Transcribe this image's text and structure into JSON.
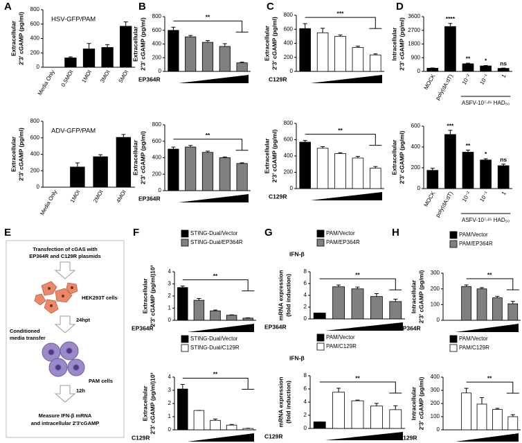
{
  "chart_data": [
    {
      "type": "bar",
      "panel": "A",
      "title": "HSV-GFP/PAM",
      "ylabel": [
        "Extracellular",
        "2'3' cGAMP (pg/ml)"
      ],
      "categories": [
        "Media Only",
        "0.5MOI",
        "1MOI",
        "3MOI",
        "5MOI"
      ],
      "values": [
        0,
        130,
        255,
        275,
        570
      ],
      "errors": [
        0,
        15,
        75,
        40,
        60
      ],
      "color": "#000000",
      "ylim": [
        0,
        800
      ],
      "yticks": [
        0,
        200,
        400,
        600,
        800
      ]
    },
    {
      "type": "bar",
      "title": "ADV-GFP/PAM",
      "ylabel": [
        "Extracellular",
        "2'3' cGAMP (pg/ml)"
      ],
      "categories": [
        "Media Only",
        "1MOI",
        "2MOI",
        "4MOI"
      ],
      "values": [
        0,
        245,
        370,
        605
      ],
      "errors": [
        0,
        50,
        25,
        35
      ],
      "color": "#000000",
      "ylim": [
        0,
        800
      ],
      "yticks": [
        0,
        200,
        400,
        600,
        800
      ]
    },
    {
      "type": "bar",
      "panel": "B",
      "ylabel": [
        "Extracellular",
        "2'3' cGAMP (pg/ml)"
      ],
      "xlabel": "EP364R",
      "categories": [
        null,
        null,
        null,
        null,
        null
      ],
      "values": [
        600,
        505,
        425,
        365,
        125
      ],
      "errors": [
        45,
        20,
        25,
        40,
        10
      ],
      "colors": [
        "#000000",
        "#808080",
        "#808080",
        "#808080",
        "#808080"
      ],
      "ylim": [
        0,
        800
      ],
      "yticks": [
        0,
        200,
        400,
        600,
        800
      ],
      "annotation": "**"
    },
    {
      "type": "bar",
      "ylabel": [
        "Extracellular",
        "2'3' cGAMP (pg/ml)"
      ],
      "xlabel": "EP364R",
      "categories": [
        null,
        null,
        null,
        null,
        null
      ],
      "values": [
        505,
        530,
        465,
        400,
        330
      ],
      "errors": [
        25,
        20,
        15,
        10,
        8
      ],
      "colors": [
        "#000000",
        "#808080",
        "#808080",
        "#808080",
        "#808080"
      ],
      "ylim": [
        0,
        800
      ],
      "yticks": [
        0,
        200,
        400,
        600,
        800
      ],
      "annotation": "**"
    },
    {
      "type": "bar",
      "panel": "C",
      "ylabel": [
        "Extracellular",
        "2'3' cGAMP (pg/ml)"
      ],
      "xlabel": "C129R",
      "categories": [
        null,
        null,
        null,
        null,
        null
      ],
      "values": [
        610,
        550,
        500,
        340,
        235
      ],
      "errors": [
        70,
        65,
        20,
        20,
        15
      ],
      "colors": [
        "#000000",
        "#ffffff",
        "#ffffff",
        "#ffffff",
        "#ffffff"
      ],
      "ylim": [
        0,
        800
      ],
      "yticks": [
        0,
        200,
        400,
        600,
        800
      ],
      "annotation": "***"
    },
    {
      "type": "bar",
      "ylabel": [
        "Extracellular",
        "2'3' cGAMP (pg/ml)"
      ],
      "xlabel": "C129R",
      "categories": [
        null,
        null,
        null,
        null,
        null
      ],
      "values": [
        570,
        495,
        430,
        375,
        250
      ],
      "errors": [
        20,
        20,
        10,
        20,
        20
      ],
      "colors": [
        "#000000",
        "#ffffff",
        "#ffffff",
        "#ffffff",
        "#ffffff"
      ],
      "ylim": [
        0,
        800
      ],
      "yticks": [
        0,
        200,
        400,
        600,
        800
      ],
      "annotation": "**"
    },
    {
      "type": "bar",
      "panel": "D",
      "ylabel": [
        "Intracellular",
        "2'3' cGAMP (pg/ml)"
      ],
      "categories": [
        "MOCK",
        "poly(dA:dT)",
        "10⁻²",
        "10⁻¹",
        "1"
      ],
      "values": [
        210,
        2950,
        500,
        360,
        200
      ],
      "errors": [
        20,
        200,
        40,
        30,
        20
      ],
      "sig_labels": [
        null,
        "****",
        "**",
        "*",
        "ns"
      ],
      "xnote": "ASFV-10⁷·²⁵ HAD₅₀",
      "color": "#000000",
      "ylim": [
        0,
        3600
      ],
      "yticks": [
        0,
        900,
        1800,
        2700,
        3600
      ]
    },
    {
      "type": "bar",
      "ylabel": [
        "Extracellular",
        "2'3' cGAMP (pg/ml)"
      ],
      "categories": [
        "MOCK",
        "poly(dA:dT)",
        "10⁻²",
        "10⁻¹",
        "1"
      ],
      "values": [
        175,
        520,
        350,
        275,
        220
      ],
      "errors": [
        20,
        40,
        20,
        12,
        15
      ],
      "sig_labels": [
        null,
        "***",
        "**",
        "*",
        "ns"
      ],
      "xnote": "ASFV-10⁷·²⁵ HAD₅₀",
      "color": "#000000",
      "ylim": [
        0,
        600
      ],
      "yticks": [
        0,
        200,
        400,
        600
      ]
    },
    {
      "type": "bar",
      "panel": "F",
      "ylabel": [
        "Extracellular",
        "2'3' cGAMP (pg/ml)10³"
      ],
      "xlabel": "EP364R",
      "categories": [
        null,
        null,
        null,
        null,
        null
      ],
      "series": [
        {
          "name": "STING-Dual/Vector",
          "color": "#000000",
          "values": [
            2.7,
            null,
            null,
            null,
            null
          ],
          "errors": [
            0.12,
            null,
            null,
            null,
            null
          ]
        },
        {
          "name": "STING-Dual/EP364R",
          "color": "#808080",
          "values": [
            null,
            1.65,
            0.78,
            0.42,
            0.18
          ],
          "errors": [
            null,
            0.15,
            0.07,
            0.03,
            0.03
          ]
        }
      ],
      "ylim": [
        0,
        4
      ],
      "yticks": [
        0,
        1,
        2,
        3,
        4
      ],
      "annotation": "**"
    },
    {
      "type": "bar",
      "ylabel": [
        "Extracellular",
        "2'3' cGAMP (pg/ml)10³"
      ],
      "xlabel": "C129R",
      "categories": [
        null,
        null,
        null,
        null,
        null
      ],
      "series": [
        {
          "name": "STING-Dual/Vector",
          "color": "#000000",
          "values": [
            3.1,
            null,
            null,
            null,
            null
          ],
          "errors": [
            0.35,
            null,
            null,
            null,
            null
          ]
        },
        {
          "name": "STING-Dual/C129R",
          "color": "#ffffff",
          "values": [
            null,
            1.47,
            0.72,
            0.36,
            0.1
          ],
          "errors": [
            null,
            0,
            0.1,
            0.05,
            0.02
          ]
        }
      ],
      "ylim": [
        0,
        4
      ],
      "yticks": [
        0,
        1,
        2,
        3,
        4
      ],
      "annotation": "**"
    },
    {
      "type": "bar",
      "panel": "G",
      "title": "IFN-β",
      "ylabel": [
        "mRNA expression",
        "(fold induction)"
      ],
      "xlabel": "EP364R",
      "categories": [
        null,
        null,
        null,
        null,
        null
      ],
      "series": [
        {
          "name": "PAM/Vector",
          "color": "#000000",
          "values": [
            1,
            null,
            null,
            null,
            null
          ],
          "errors": [
            0,
            null,
            null,
            null,
            null
          ]
        },
        {
          "name": "PAM/EP364R",
          "color": "#808080",
          "values": [
            null,
            5.45,
            5.1,
            3.8,
            2.95
          ],
          "errors": [
            null,
            0.3,
            0.3,
            0.5,
            0.4
          ]
        }
      ],
      "ylim": [
        0,
        8
      ],
      "yticks": [
        0,
        2,
        4,
        6,
        8
      ],
      "annotation": "**"
    },
    {
      "type": "bar",
      "title": "IFN-β",
      "ylabel": [
        "mRNA expression",
        "(fold induction)"
      ],
      "xlabel": "C129R",
      "categories": [
        null,
        null,
        null,
        null,
        null
      ],
      "series": [
        {
          "name": "PAM/Vector",
          "color": "#000000",
          "values": [
            1,
            null,
            null,
            null,
            null
          ],
          "errors": [
            0,
            null,
            null,
            null,
            null
          ]
        },
        {
          "name": "PAM/C129R",
          "color": "#ffffff",
          "values": [
            null,
            5.5,
            4.2,
            3.4,
            2.85
          ],
          "errors": [
            null,
            0.6,
            0.1,
            0.4,
            0.6
          ]
        }
      ],
      "ylim": [
        0,
        8
      ],
      "yticks": [
        0,
        2,
        4,
        6,
        8
      ],
      "annotation": "**"
    },
    {
      "type": "bar",
      "panel": "H",
      "ylabel": [
        "Intracellular",
        "2'3' cGAMP (pg/ml)"
      ],
      "xlabel": "EP364R",
      "categories": [
        null,
        null,
        null,
        null,
        null
      ],
      "series": [
        {
          "name": "PAM/Vector",
          "color": "#000000",
          "values": [
            0,
            null,
            null,
            null,
            null
          ],
          "errors": [
            0,
            null,
            null,
            null,
            null
          ]
        },
        {
          "name": "PAM/EP364R",
          "color": "#808080",
          "values": [
            null,
            215,
            200,
            143,
            105
          ],
          "errors": [
            null,
            10,
            8,
            10,
            15
          ]
        }
      ],
      "ylim": [
        0,
        300
      ],
      "yticks": [
        0,
        100,
        200,
        300
      ],
      "annotation": "**"
    },
    {
      "type": "bar",
      "ylabel": [
        "Intracellular",
        "2'3' cGAMP (pg/ml)"
      ],
      "xlabel": "C129R",
      "categories": [
        null,
        null,
        null,
        null,
        null
      ],
      "series": [
        {
          "name": "PAM/Vector",
          "color": "#000000",
          "values": [
            0,
            null,
            null,
            null,
            null
          ],
          "errors": [
            0,
            null,
            null,
            null,
            null
          ]
        },
        {
          "name": "PAM/C129R",
          "color": "#ffffff",
          "values": [
            null,
            280,
            195,
            155,
            100
          ],
          "errors": [
            null,
            35,
            50,
            8,
            15
          ]
        }
      ],
      "ylim": [
        0,
        400
      ],
      "yticks": [
        0,
        100,
        200,
        300,
        400
      ],
      "annotation": "**"
    }
  ],
  "diagram": {
    "panel": "E",
    "step1": [
      "Transfection of cGAS with",
      "EP364R and C129R plasmids"
    ],
    "cells1": "HEK293T cells",
    "time1": "24hpt",
    "step2": [
      "Conditioned",
      "media transfer"
    ],
    "cells2": "PAM cells",
    "time2": "12h",
    "step3": [
      "Measure IFN-β mRNA",
      "and intracellular 2'3'cGAMP"
    ]
  }
}
